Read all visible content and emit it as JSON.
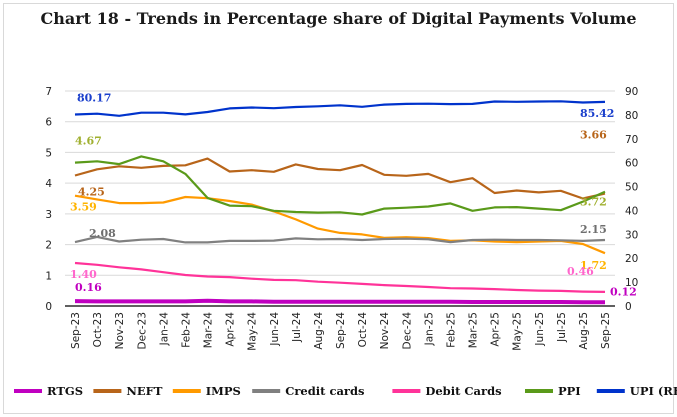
{
  "chart_data": {
    "type": "line",
    "title": "Chart 18 - Trends in Percentage share of Digital Payments Volume",
    "categories": [
      "Sep-23",
      "Oct-23",
      "Nov-23",
      "Dec-23",
      "Jan-24",
      "Feb-24",
      "Mar-24",
      "Apr-24",
      "May-24",
      "Jun-24",
      "Jul-24",
      "Aug-24",
      "Sep-24",
      "Oct-24",
      "Nov-24",
      "Dec-24",
      "Jan-25",
      "Feb-25",
      "Mar-25",
      "Apr-25",
      "May-25",
      "Jun-25",
      "Jul-25",
      "Aug-25",
      "Sep-25"
    ],
    "y_left": {
      "min": 0,
      "max": 7,
      "ticks": [
        "0",
        "1",
        "2",
        "3",
        "4",
        "5",
        "6",
        "7"
      ]
    },
    "y_right": {
      "min": 0,
      "max": 90,
      "ticks": [
        "0",
        "10",
        "20",
        "30",
        "40",
        "50",
        "60",
        "70",
        "80",
        "90"
      ]
    },
    "grid": true,
    "legend_position": "bottom",
    "series": [
      {
        "name": "RTGS",
        "axis": "left",
        "color": "#c000c0",
        "label_color": "#c000c0",
        "first_label": "0.16",
        "last_label": "0.12",
        "values": [
          0.16,
          0.15,
          0.15,
          0.15,
          0.15,
          0.15,
          0.17,
          0.15,
          0.15,
          0.14,
          0.14,
          0.14,
          0.14,
          0.14,
          0.14,
          0.14,
          0.14,
          0.14,
          0.13,
          0.13,
          0.13,
          0.13,
          0.13,
          0.12,
          0.12
        ]
      },
      {
        "name": "NEFT",
        "axis": "left",
        "color": "#b8651a",
        "label_color": "#b8651a",
        "first_label": "4.25",
        "last_label": "3.66",
        "values": [
          4.25,
          4.45,
          4.55,
          4.5,
          4.56,
          4.58,
          4.8,
          4.38,
          4.42,
          4.37,
          4.61,
          4.46,
          4.42,
          4.59,
          4.27,
          4.24,
          4.3,
          4.03,
          4.16,
          3.68,
          3.76,
          3.7,
          3.75,
          3.5,
          3.66
        ]
      },
      {
        "name": "IMPS",
        "axis": "left",
        "color": "#ff9a00",
        "label_color": "#ffb400",
        "first_label": "3.59",
        "last_label": "1.72",
        "values": [
          3.59,
          3.47,
          3.35,
          3.35,
          3.37,
          3.55,
          3.51,
          3.42,
          3.3,
          3.08,
          2.82,
          2.52,
          2.38,
          2.33,
          2.22,
          2.24,
          2.21,
          2.12,
          2.14,
          2.1,
          2.08,
          2.1,
          2.12,
          2.02,
          1.72
        ]
      },
      {
        "name": "Credit cards",
        "axis": "left",
        "color": "#808080",
        "label_color": "#6f6f6f",
        "first_label": "2.08",
        "last_label": "2.15",
        "values": [
          2.08,
          2.25,
          2.1,
          2.16,
          2.18,
          2.07,
          2.07,
          2.12,
          2.12,
          2.13,
          2.2,
          2.17,
          2.18,
          2.15,
          2.18,
          2.19,
          2.17,
          2.08,
          2.15,
          2.16,
          2.15,
          2.15,
          2.14,
          2.12,
          2.15
        ]
      },
      {
        "name": "Debit Cards",
        "axis": "left",
        "color": "#ff3399",
        "label_color": "#ff66cc",
        "first_label": "1.40",
        "last_label": "0.46",
        "values": [
          1.4,
          1.34,
          1.26,
          1.19,
          1.1,
          1.01,
          0.96,
          0.94,
          0.89,
          0.85,
          0.84,
          0.79,
          0.76,
          0.72,
          0.68,
          0.65,
          0.62,
          0.58,
          0.57,
          0.55,
          0.52,
          0.5,
          0.49,
          0.47,
          0.46
        ]
      },
      {
        "name": "PPI",
        "axis": "left",
        "color": "#5a9a1a",
        "label_color": "#a0b030",
        "first_label": "4.67",
        "last_label": "3.72",
        "values": [
          4.67,
          4.71,
          4.62,
          4.87,
          4.71,
          4.3,
          3.52,
          3.27,
          3.25,
          3.1,
          3.06,
          3.04,
          3.05,
          2.98,
          3.17,
          3.2,
          3.24,
          3.34,
          3.1,
          3.21,
          3.22,
          3.17,
          3.12,
          3.4,
          3.72
        ]
      },
      {
        "name": "UPI (RHS)",
        "axis": "right",
        "color": "#0033cc",
        "label_color": "#1a3fcc",
        "first_label": "80.17",
        "last_label": "85.42",
        "values": [
          80.17,
          80.5,
          79.6,
          80.9,
          80.9,
          80.2,
          81.2,
          82.7,
          83.1,
          82.8,
          83.3,
          83.6,
          84.0,
          83.4,
          84.3,
          84.6,
          84.7,
          84.5,
          84.6,
          85.6,
          85.5,
          85.6,
          85.7,
          85.2,
          85.42
        ]
      }
    ]
  }
}
